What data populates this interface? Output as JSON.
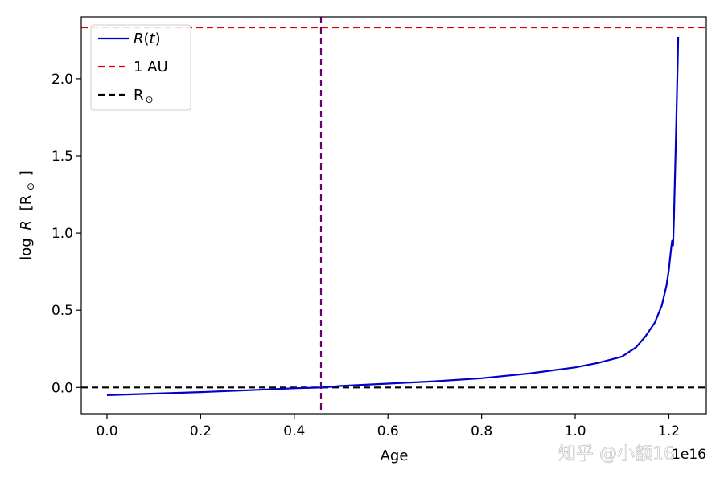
{
  "chart_data": {
    "type": "line",
    "xlabel": "Age",
    "ylabel_main": "log",
    "ylabel_var": "R",
    "ylabel_unit": "[R",
    "ylabel_unit_sub": "⊙",
    "ylabel_unit_close": "]",
    "x_offset_text": "1e16",
    "xlim": [
      -0.055,
      1.28
    ],
    "ylim": [
      -0.17,
      2.4
    ],
    "x_ticks": [
      0.0,
      0.2,
      0.4,
      0.6,
      0.8,
      1.0,
      1.2
    ],
    "x_tick_labels": [
      "0.0",
      "0.2",
      "0.4",
      "0.6",
      "0.8",
      "1.0",
      "1.2"
    ],
    "y_ticks": [
      0.0,
      0.5,
      1.0,
      1.5,
      2.0
    ],
    "y_tick_labels": [
      "0.0",
      "0.5",
      "1.0",
      "1.5",
      "2.0"
    ],
    "grid": false,
    "legend_position": "top-left",
    "series": [
      {
        "name": "R(t)",
        "legend_label": "R(t)",
        "color": "#0000cc",
        "style": "solid",
        "x": [
          0.0,
          0.1,
          0.2,
          0.3,
          0.4,
          0.46,
          0.5,
          0.6,
          0.7,
          0.8,
          0.9,
          1.0,
          1.05,
          1.1,
          1.13,
          1.15,
          1.17,
          1.185,
          1.195,
          1.2,
          1.205,
          1.207,
          1.209,
          1.211,
          1.213,
          1.215,
          1.217,
          1.219,
          1.22
        ],
        "y": [
          -0.05,
          -0.04,
          -0.03,
          -0.018,
          -0.005,
          0.0,
          0.01,
          0.025,
          0.04,
          0.06,
          0.09,
          0.13,
          0.16,
          0.2,
          0.26,
          0.33,
          0.42,
          0.53,
          0.66,
          0.76,
          0.9,
          0.95,
          0.92,
          1.1,
          1.35,
          1.6,
          1.85,
          2.12,
          2.27
        ]
      },
      {
        "name": "1 AU",
        "legend_label": "1 AU",
        "color": "#dd0000",
        "style": "dashed",
        "y_constant": 2.332
      },
      {
        "name": "R⊙",
        "legend_label": "R",
        "legend_sub": "⊙",
        "color": "#000000",
        "style": "dashed",
        "y_constant": 0.0
      }
    ],
    "vertical_line": {
      "x": 0.457,
      "color": "#6b006b",
      "style": "dashed"
    }
  },
  "watermark": "知乎 @小额16"
}
